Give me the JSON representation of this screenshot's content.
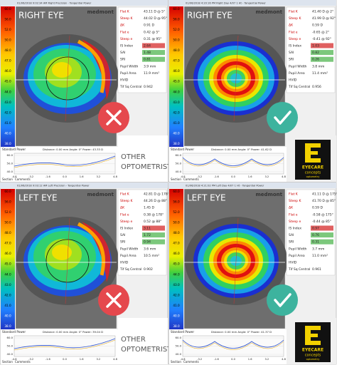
{
  "panels": [
    {
      "header": "01/06/2018 9:02:34 AM Right Precision - Tangential Power",
      "eye_label": "RIGHT EYE",
      "logo": "medmont",
      "verdict": "cross",
      "map": "irregular",
      "scale": [
        "60.0",
        "56.0",
        "52.0",
        "50.0",
        "48.0",
        "47.0",
        "46.0",
        "45.0",
        "44.0",
        "43.0",
        "42.0",
        "41.0",
        "40.0",
        "38.0",
        "36.0",
        "30.0"
      ],
      "table": [
        [
          "Flat K",
          "43.11 D @ 5°"
        ],
        [
          "Steep K",
          "44.02 D @ 95°"
        ],
        [
          "ΔK",
          "0.91 D"
        ],
        [
          "Flat e",
          "0.42 @ 5°"
        ],
        [
          "Steep e",
          "0.31 @ 95°"
        ],
        [
          "IS Index",
          "2.64"
        ],
        [
          "SAI",
          "1.48"
        ],
        [
          "SRI",
          "0.81"
        ],
        [
          "Pupil Width",
          "3.9 mm"
        ],
        [
          "Pupil Area",
          "11.9 mm²"
        ],
        [
          "HVID",
          ""
        ],
        [
          "Tif Sq Central",
          "0.942"
        ]
      ],
      "graph_title": "Standard Power",
      "graph_info": "Distance: 0.00 mm  Angle: 0°  Power: 43.33 D",
      "graph_yticks": [
        "60.0",
        "50.0",
        "40.0"
      ],
      "graph_xticks": [
        "-4.8",
        "-3.2",
        "-1.6",
        "0.0",
        "1.6",
        "3.2",
        "4.8"
      ],
      "tabs": [
        "Section",
        "Comments"
      ],
      "caption": [
        "OTHER",
        "OPTOMETRIST"
      ]
    },
    {
      "header": "01/06/2018 4:20:16 PM Right Day 4/07 1 Ht - Tangential Power",
      "eye_label": "RIGHT EYE",
      "logo": "medmont",
      "verdict": "check",
      "map": "rings",
      "scale": [
        "60.0",
        "56.0",
        "52.0",
        "50.0",
        "48.0",
        "47.0",
        "46.0",
        "45.0",
        "44.0",
        "43.0",
        "42.0",
        "41.0",
        "40.0",
        "38.0",
        "36.0",
        "30.0"
      ],
      "table": [
        [
          "Flat K",
          "41.40 D @ 2°"
        ],
        [
          "Steep K",
          "41.99 D @ 92°"
        ],
        [
          "ΔK",
          "0.59 D"
        ],
        [
          "Flat e",
          "-0.65 @ 2°"
        ],
        [
          "Steep e",
          "-0.41 @ 92°"
        ],
        [
          "IS Index",
          "1.03"
        ],
        [
          "SAI",
          "0.82"
        ],
        [
          "SRI",
          "0.26"
        ],
        [
          "Pupil Width",
          "3.8 mm"
        ],
        [
          "Pupil Area",
          "11.4 mm²"
        ],
        [
          "HVID",
          ""
        ],
        [
          "Tif Sq Central",
          "0.956"
        ]
      ],
      "graph_title": "Standard Power",
      "graph_info": "Distance: 0.00 mm  Angle: 0°  Power: 41.62 D",
      "graph_yticks": [
        "60.0",
        "50.0",
        "40.0"
      ],
      "graph_xticks": [
        "-4.8",
        "-3.2",
        "-1.6",
        "0.0",
        "1.6",
        "3.2",
        "4.8"
      ],
      "tabs": [
        "Section",
        "Comments"
      ],
      "brand": [
        "EYECARE",
        "concepts",
        "optometry"
      ]
    },
    {
      "header": "01/06/2018 9:03:12 AM Left Precision - Tangential Power",
      "eye_label": "LEFT EYE",
      "logo": "medmont",
      "verdict": "cross",
      "map": "irregular",
      "scale": [
        "60.0",
        "56.0",
        "52.0",
        "50.0",
        "48.0",
        "47.0",
        "46.0",
        "45.0",
        "44.0",
        "43.0",
        "42.0",
        "41.0",
        "40.0",
        "38.0",
        "36.0",
        "30.0"
      ],
      "table": [
        [
          "Flat K",
          "42.81 D @ 178°"
        ],
        [
          "Steep K",
          "44.26 D @ 88°"
        ],
        [
          "ΔK",
          "1.45 D"
        ],
        [
          "Flat e",
          "0.38 @ 178°"
        ],
        [
          "Steep e",
          "0.52 @ 88°"
        ],
        [
          "IS Index",
          "3.11"
        ],
        [
          "SAI",
          "1.72"
        ],
        [
          "SRI",
          "0.94"
        ],
        [
          "Pupil Width",
          "3.6 mm"
        ],
        [
          "Pupil Area",
          "10.5 mm²"
        ],
        [
          "HVID",
          ""
        ],
        [
          "Tif Sq Central",
          "0.902"
        ]
      ],
      "graph_title": "Standard Power",
      "graph_info": "Distance: 0.00 mm  Angle: 0°  Power: 39.04 D",
      "graph_yticks": [
        "60.0",
        "50.0",
        "40.0"
      ],
      "graph_xticks": [
        "-4.8",
        "-3.2",
        "-1.6",
        "0.0",
        "1.6",
        "3.2",
        "4.8"
      ],
      "tabs": [
        "Section",
        "Comments"
      ],
      "caption": [
        "OTHER",
        "OPTOMETRIST"
      ]
    },
    {
      "header": "01/06/2018 4:21:02 PM Left Day 4/07 1 Ht - Tangential Power",
      "eye_label": "LEFT EYE",
      "logo": "medmont",
      "verdict": "check",
      "map": "rings",
      "scale": [
        "60.0",
        "56.0",
        "52.0",
        "50.0",
        "48.0",
        "47.0",
        "46.0",
        "45.0",
        "44.0",
        "43.0",
        "42.0",
        "41.0",
        "40.0",
        "38.0",
        "36.0",
        "30.0"
      ],
      "table": [
        [
          "Flat K",
          "41.11 D @ 175°"
        ],
        [
          "Steep K",
          "41.70 D @ 85°"
        ],
        [
          "ΔK",
          "0.59 D"
        ],
        [
          "Flat e",
          "-0.58 @ 175°"
        ],
        [
          "Steep e",
          "-0.44 @ 85°"
        ],
        [
          "IS Index",
          "0.97"
        ],
        [
          "SAI",
          "0.76"
        ],
        [
          "SRI",
          "0.31"
        ],
        [
          "Pupil Width",
          "3.7 mm"
        ],
        [
          "Pupil Area",
          "11.0 mm²"
        ],
        [
          "HVID",
          ""
        ],
        [
          "Tif Sq Central",
          "0.961"
        ]
      ],
      "graph_title": "Standard Power",
      "graph_info": "Distance: 0.00 mm  Angle: 0°  Power: 41.37 D",
      "graph_yticks": [
        "60.0",
        "50.0",
        "40.0"
      ],
      "graph_xticks": [
        "-4.8",
        "-3.2",
        "-1.6",
        "0.0",
        "1.6",
        "3.2",
        "4.8"
      ],
      "tabs": [
        "Section",
        "Comments"
      ],
      "brand": [
        "EYECARE",
        "concepts",
        "optometry"
      ]
    }
  ]
}
